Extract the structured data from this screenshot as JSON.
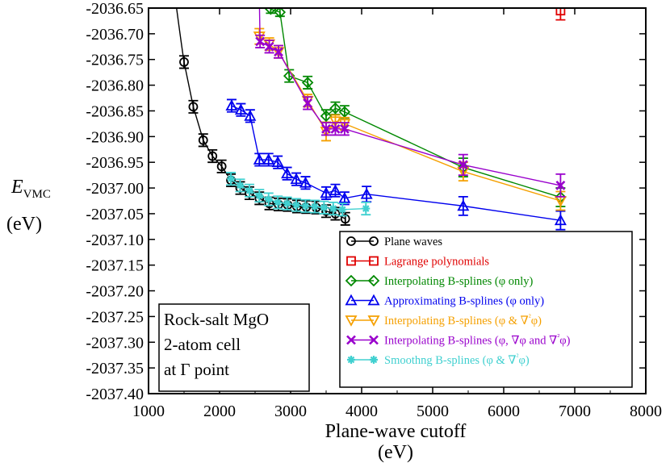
{
  "chart_data": {
    "type": "line",
    "title": "",
    "xlabel_line1": "Plane-wave cutoff",
    "xlabel_line2": "(eV)",
    "ylabel_main": "E",
    "ylabel_sub": "VMC",
    "ylabel_unit": "(eV)",
    "xlim": [
      1000,
      8000
    ],
    "ylim": [
      -2037.4,
      -2036.65
    ],
    "xticks": [
      "1000",
      "2000",
      "3000",
      "4000",
      "5000",
      "6000",
      "7000",
      "8000"
    ],
    "xtick_values": [
      1000,
      2000,
      3000,
      4000,
      5000,
      6000,
      7000,
      8000
    ],
    "yticks": [
      "-2036.65",
      "-2036.70",
      "-2036.75",
      "-2036.80",
      "-2036.85",
      "-2036.90",
      "-2036.95",
      "-2037.00",
      "-2037.05",
      "-2037.10",
      "-2037.15",
      "-2037.20",
      "-2037.25",
      "-2037.30",
      "-2037.35",
      "-2037.40"
    ],
    "ytick_values": [
      -2036.65,
      -2036.7,
      -2036.75,
      -2036.8,
      -2036.85,
      -2036.9,
      -2036.95,
      -2037.0,
      -2037.05,
      -2037.1,
      -2037.15,
      -2037.2,
      -2037.25,
      -2037.3,
      -2037.35,
      -2037.4
    ],
    "annotation": [
      "Rock-salt MgO",
      "2-atom cell",
      "at Γ point"
    ],
    "legend_position": "lower-right",
    "series": [
      {
        "name": "Plane waves",
        "legend": [
          "Plane waves"
        ],
        "color": "#000000",
        "marker": "circle",
        "curve_start": {
          "x": 1300,
          "y": -2036.55
        },
        "x": [
          1500,
          1630,
          1770,
          1900,
          2030,
          2160,
          2290,
          2420,
          2560,
          2700,
          2830,
          2960,
          3090,
          3220,
          3360,
          3500,
          3630,
          3770
        ],
        "y": [
          -2036.755,
          -2036.842,
          -2036.907,
          -2036.938,
          -2036.958,
          -2036.985,
          -2037.0,
          -2037.01,
          -2037.02,
          -2037.03,
          -2037.032,
          -2037.033,
          -2037.036,
          -2037.037,
          -2037.038,
          -2037.045,
          -2037.05,
          -2037.06
        ],
        "err": [
          0.012,
          0.012,
          0.012,
          0.012,
          0.012,
          0.012,
          0.012,
          0.012,
          0.012,
          0.012,
          0.012,
          0.012,
          0.012,
          0.012,
          0.012,
          0.012,
          0.012,
          0.012
        ]
      },
      {
        "name": "Lagrange polynomials",
        "legend": [
          "Lagrange polynomials"
        ],
        "color": "#e00000",
        "marker": "square",
        "x": [
          6800
        ],
        "y": [
          -2036.655
        ],
        "err": [
          0.018
        ]
      },
      {
        "name": "Interpolating B-splines (φ only)",
        "legend": [
          "Interpolating B-splines (",
          "φ",
          " only)"
        ],
        "color": "#008800",
        "marker": "diamond",
        "curve_start": {
          "x": 2600,
          "y": -2036.6
        },
        "x": [
          2720,
          2850,
          2980,
          3240,
          3500,
          3630,
          3760,
          5430,
          6800
        ],
        "y": [
          -2036.652,
          -2036.658,
          -2036.782,
          -2036.795,
          -2036.86,
          -2036.845,
          -2036.852,
          -2036.96,
          -2037.018
        ],
        "err": [
          0.008,
          0.008,
          0.012,
          0.012,
          0.012,
          0.012,
          0.012,
          0.018,
          0.018
        ]
      },
      {
        "name": "Approximating B-splines (φ only)",
        "legend": [
          "Approximating B-splines (",
          "φ",
          " only)"
        ],
        "color": "#0000ee",
        "marker": "triangle-up",
        "x": [
          2170,
          2300,
          2430,
          2560,
          2690,
          2820,
          2950,
          3080,
          3210,
          3500,
          3630,
          3760,
          4070,
          5430,
          6800
        ],
        "y": [
          -2036.84,
          -2036.848,
          -2036.86,
          -2036.945,
          -2036.945,
          -2036.95,
          -2036.972,
          -2036.983,
          -2036.99,
          -2037.01,
          -2037.005,
          -2037.02,
          -2037.012,
          -2037.035,
          -2037.063
        ],
        "err": [
          0.012,
          0.012,
          0.012,
          0.012,
          0.012,
          0.012,
          0.012,
          0.012,
          0.012,
          0.012,
          0.012,
          0.012,
          0.015,
          0.018,
          0.018
        ]
      },
      {
        "name": "Interpolating B-splines (φ & ∇²φ)",
        "legend": [
          "Interpolating B-splines (",
          "φ",
          " & ",
          "∇",
          "²",
          "φ",
          ")"
        ],
        "color": "#f5a000",
        "marker": "triangle-down",
        "x": [
          2560,
          2700,
          2830,
          3240,
          3500,
          3630,
          3760,
          5430,
          6800
        ],
        "y": [
          -2036.705,
          -2036.72,
          -2036.735,
          -2036.83,
          -2036.89,
          -2036.87,
          -2036.875,
          -2036.968,
          -2037.025
        ],
        "err": [
          0.015,
          0.012,
          0.012,
          0.012,
          0.018,
          0.012,
          0.012,
          0.018,
          0.018
        ]
      },
      {
        "name": "Interpolating B-splines (φ, ∇φ and ∇²φ)",
        "legend": [
          "Interpolating B-splines (",
          "φ",
          ", ",
          "∇φ",
          " and ",
          "∇",
          "²",
          "φ",
          ")"
        ],
        "color": "#9900cc",
        "marker": "x",
        "curve_start": {
          "x": 2550,
          "y": -2036.55
        },
        "x": [
          2570,
          2700,
          2830,
          3240,
          3500,
          3630,
          3760,
          5430,
          6800
        ],
        "y": [
          -2036.715,
          -2036.725,
          -2036.735,
          -2036.835,
          -2036.885,
          -2036.885,
          -2036.885,
          -2036.955,
          -2036.995
        ],
        "err": [
          0.012,
          0.012,
          0.012,
          0.012,
          0.012,
          0.012,
          0.012,
          0.02,
          0.022
        ]
      },
      {
        "name": "Smoothng B-splines (φ & ∇²φ)",
        "legend": [
          "Smoothng B-splines (",
          "φ",
          " & ",
          "∇",
          "²",
          "φ",
          ")"
        ],
        "color": "#40d0d0",
        "marker": "asterisk",
        "x": [
          2160,
          2290,
          2420,
          2560,
          2690,
          2820,
          2950,
          3080,
          3210,
          3340,
          3470,
          3600,
          3730,
          4060
        ],
        "y": [
          -2036.982,
          -2036.995,
          -2037.005,
          -2037.015,
          -2037.022,
          -2037.028,
          -2037.03,
          -2037.033,
          -2037.035,
          -2037.036,
          -2037.038,
          -2037.04,
          -2037.042,
          -2037.04
        ],
        "err": [
          0.012,
          0.012,
          0.012,
          0.012,
          0.012,
          0.012,
          0.012,
          0.012,
          0.012,
          0.012,
          0.012,
          0.012,
          0.012,
          0.012
        ]
      }
    ]
  }
}
